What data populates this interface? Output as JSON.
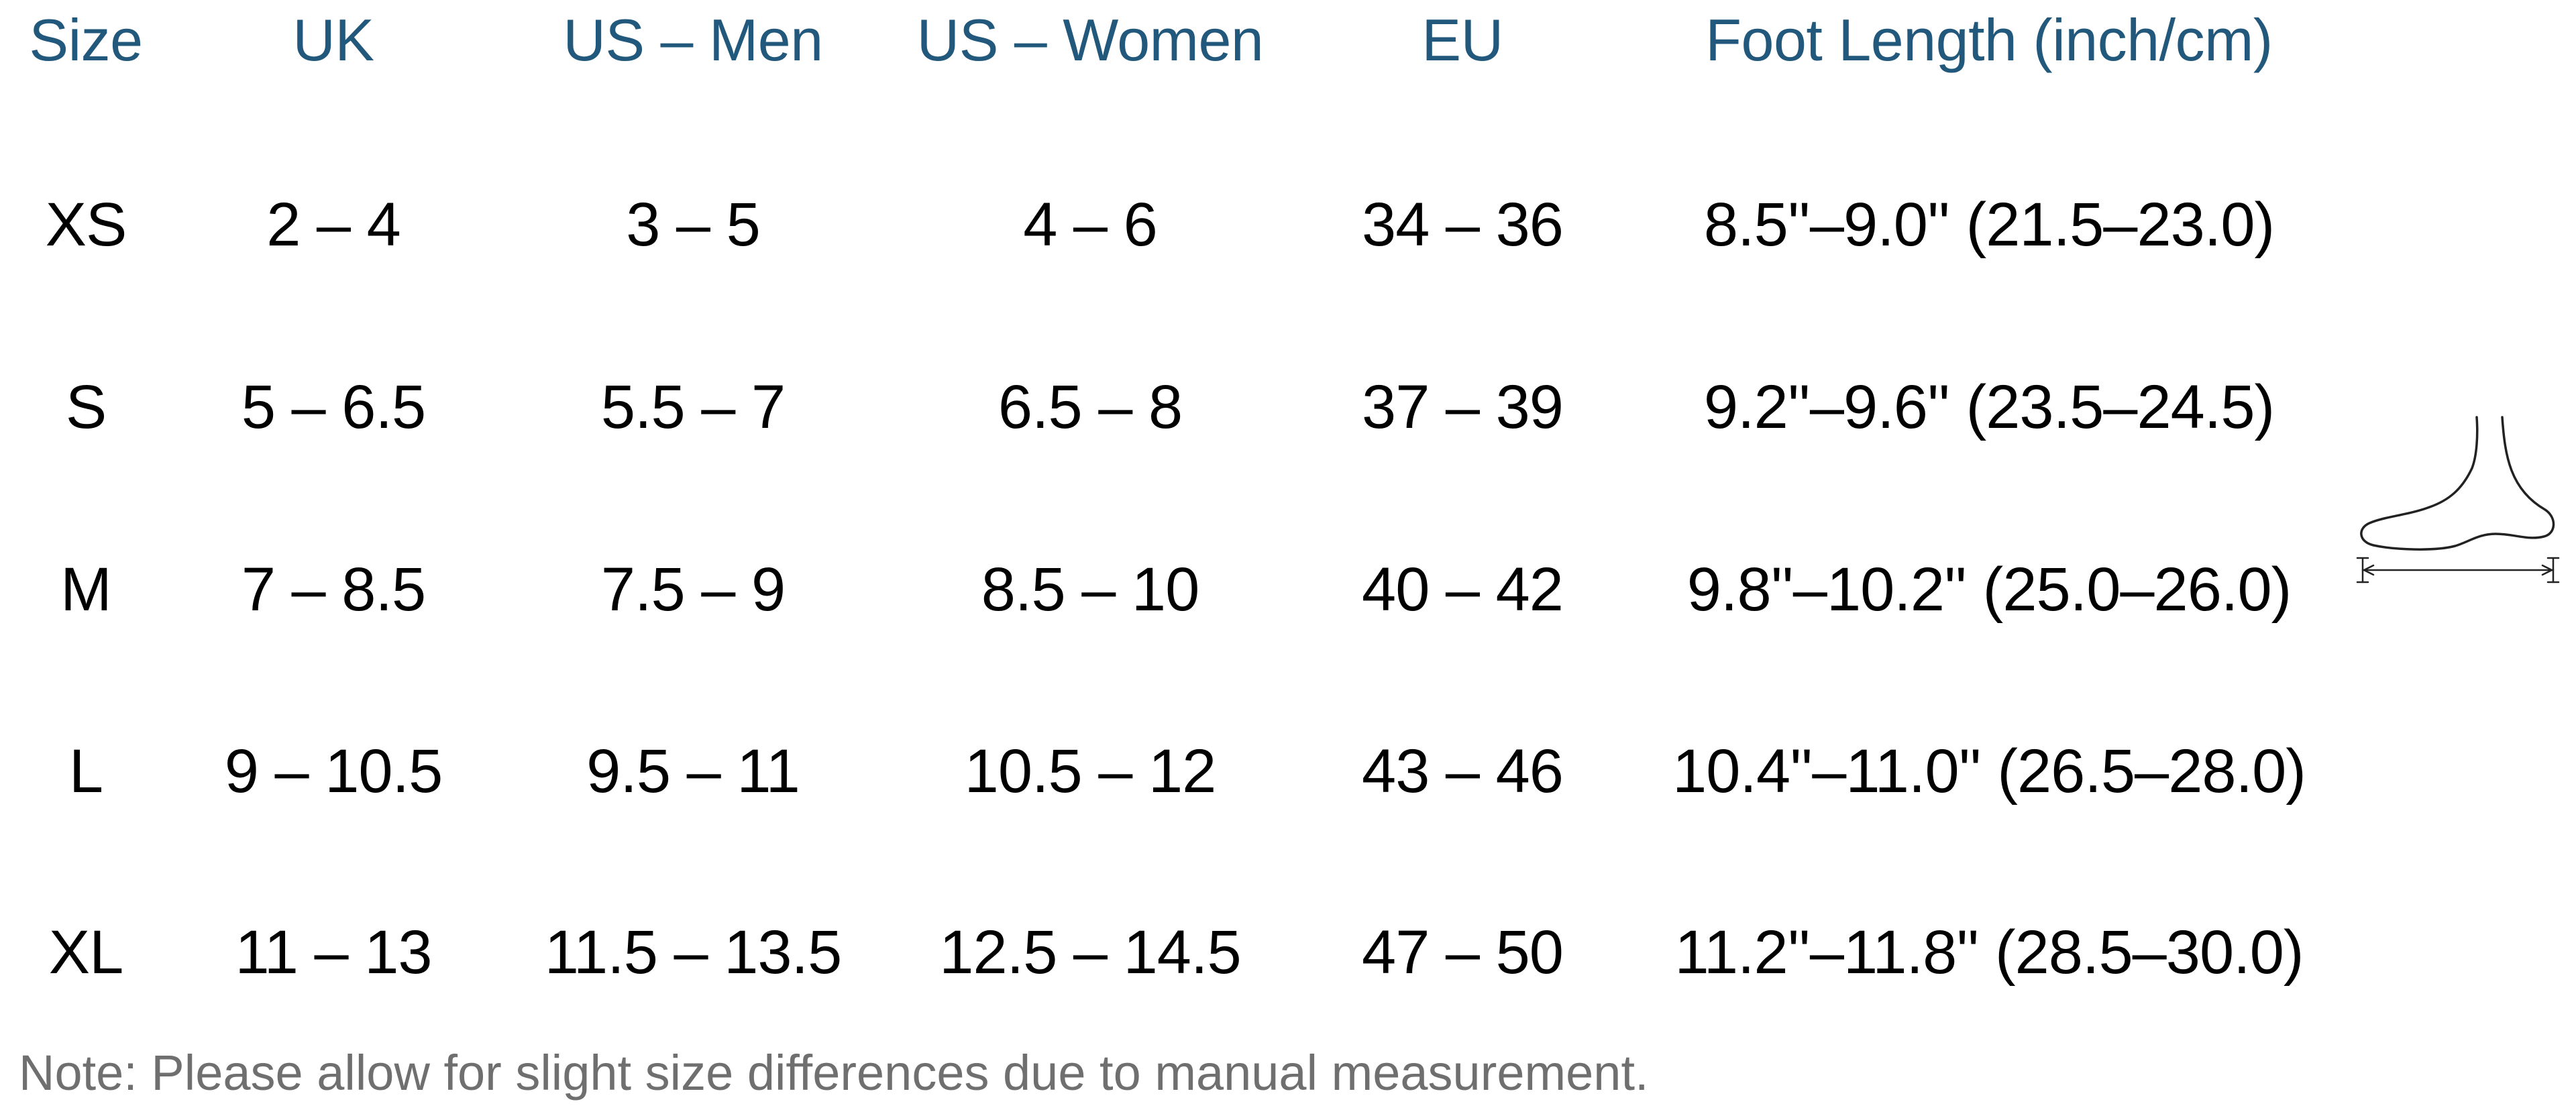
{
  "headers": [
    "Size",
    "UK",
    "US – Men",
    "US – Women",
    "EU",
    "Foot Length (inch/cm)"
  ],
  "rows": [
    [
      "XS",
      "2 – 4",
      "3 – 5",
      "4 – 6",
      "34 – 36",
      "8.5''–9.0'' (21.5–23.0)"
    ],
    [
      "S",
      "5 – 6.5",
      "5.5 – 7",
      "6.5 – 8",
      "37 – 39",
      "9.2''–9.6'' (23.5–24.5)"
    ],
    [
      "M",
      "7 – 8.5",
      "7.5 – 9",
      "8.5 – 10",
      "40 – 42",
      "9.8''–10.2'' (25.0–26.0)"
    ],
    [
      "L",
      "9 – 10.5",
      "9.5 – 11",
      "10.5 – 12",
      "43 – 46",
      "10.4''–11.0'' (26.5–28.0)"
    ],
    [
      "XL",
      "11 – 13",
      "11.5 – 13.5",
      "12.5 – 14.5",
      "47 – 50",
      "11.2''–11.8'' (28.5–30.0)"
    ]
  ],
  "note": "Note: Please allow for slight size differences due to manual measurement.",
  "colors": {
    "header": "#21587b",
    "value": "#000000",
    "note": "#6f6f6f"
  },
  "icons": {
    "foot": "foot-length-measurement-icon"
  }
}
